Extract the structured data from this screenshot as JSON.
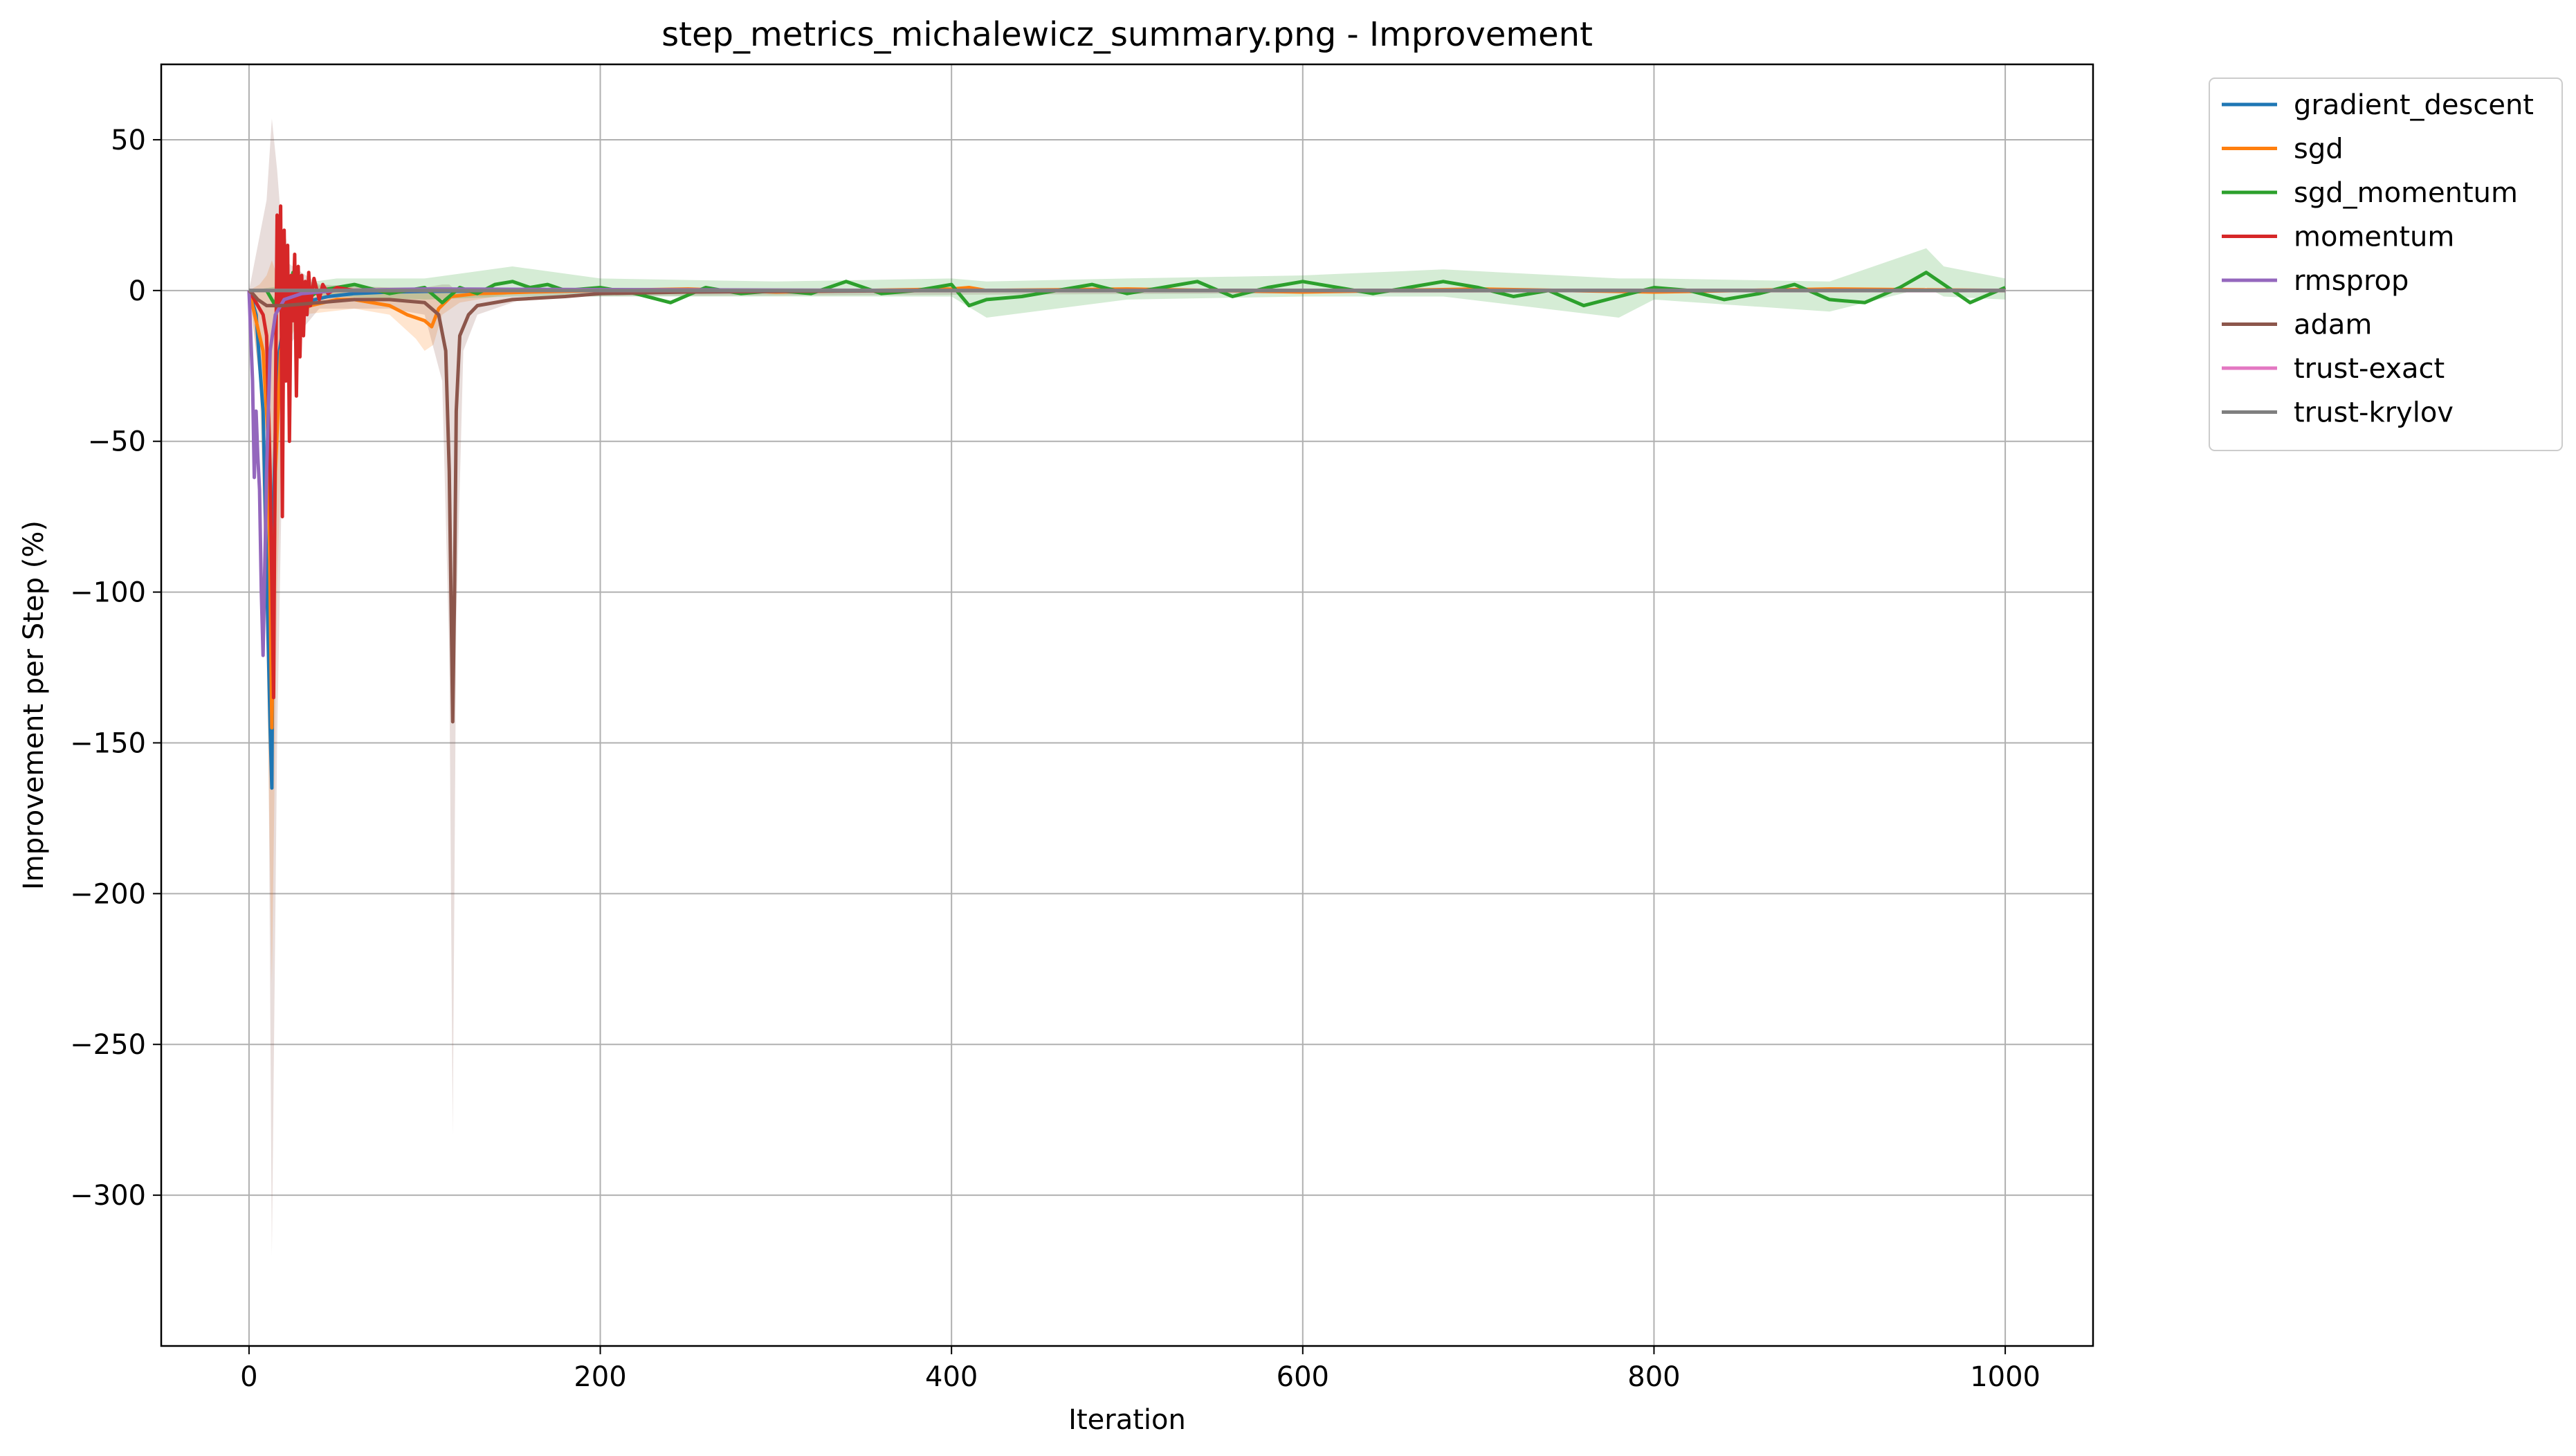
{
  "chart_data": {
    "type": "line",
    "title": "step_metrics_michalewicz_summary.png - Improvement",
    "xlabel": "Iteration",
    "ylabel": "Improvement per Step (%)",
    "xlim": [
      -50,
      1050
    ],
    "ylim": [
      -350,
      75
    ],
    "xticks": [
      0,
      200,
      400,
      600,
      800,
      1000
    ],
    "xtick_labels": [
      "0",
      "200",
      "400",
      "600",
      "800",
      "1000"
    ],
    "yticks": [
      50,
      0,
      -50,
      -100,
      -150,
      -200,
      -250,
      -300
    ],
    "ytick_labels": [
      "50",
      "0",
      "−50",
      "−100",
      "−150",
      "−200",
      "−250",
      "−300"
    ],
    "grid": true,
    "legend_position": "outside-right-top",
    "series": [
      {
        "name": "gradient_descent",
        "color": "#1f77b4",
        "x": [
          0,
          4,
          8,
          12,
          13,
          14,
          16,
          20,
          30,
          45,
          60,
          80,
          100,
          150,
          200,
          1000
        ],
        "y": [
          0,
          -8,
          -40,
          -145,
          -165,
          -70,
          -25,
          -10,
          -4,
          -2,
          -1,
          -0.5,
          -0.3,
          -0.1,
          0,
          0
        ]
      },
      {
        "name": "sgd",
        "color": "#ff7f0e",
        "x": [
          0,
          4,
          8,
          11,
          13,
          15,
          18,
          25,
          35,
          50,
          60,
          70,
          80,
          90,
          100,
          104,
          108,
          115,
          130,
          160,
          200,
          250,
          300,
          400,
          410,
          420,
          500,
          600,
          700,
          800,
          900,
          1000
        ],
        "y": [
          0,
          -10,
          -20,
          -50,
          -145,
          -60,
          -20,
          -8,
          -5,
          -3,
          -3,
          -4,
          -5,
          -8,
          -10,
          -12,
          -6,
          -2,
          -1,
          -0.5,
          0,
          0.5,
          -0.5,
          0.5,
          1,
          0,
          0.5,
          -0.5,
          0.5,
          -0.5,
          0.5,
          0
        ]
      },
      {
        "name": "sgd_momentum",
        "color": "#2ca02c",
        "x": [
          0,
          10,
          15,
          18,
          20,
          22,
          25,
          30,
          40,
          50,
          60,
          80,
          100,
          110,
          120,
          130,
          140,
          150,
          160,
          170,
          180,
          200,
          220,
          240,
          260,
          280,
          300,
          320,
          340,
          360,
          380,
          400,
          410,
          420,
          440,
          460,
          480,
          500,
          520,
          540,
          560,
          580,
          600,
          620,
          640,
          660,
          680,
          700,
          720,
          740,
          760,
          780,
          800,
          820,
          840,
          860,
          880,
          900,
          920,
          940,
          955,
          965,
          980,
          1000
        ],
        "y": [
          0,
          0,
          -5,
          10,
          17,
          -6,
          6,
          -4,
          0,
          1,
          2,
          -1,
          1,
          -4,
          1,
          -1,
          2,
          3,
          1,
          2,
          0,
          1,
          -1,
          -4,
          1,
          -1,
          0,
          -1,
          3,
          -1,
          0,
          2,
          -5,
          -3,
          -2,
          0,
          2,
          -1,
          1,
          3,
          -2,
          1,
          3,
          1,
          -1,
          1,
          3,
          1,
          -2,
          0,
          -5,
          -2,
          1,
          0,
          -3,
          -1,
          2,
          -3,
          -4,
          1,
          6,
          2,
          -4,
          1
        ]
      },
      {
        "name": "momentum",
        "color": "#d62728",
        "x": [
          0,
          5,
          8,
          10,
          12,
          14,
          15,
          16,
          17,
          18,
          19,
          20,
          21,
          22,
          23,
          24,
          25,
          26,
          27,
          28,
          29,
          30,
          31,
          32,
          33,
          34,
          35,
          37,
          40,
          42,
          45,
          50,
          60,
          80,
          100,
          200,
          1000
        ],
        "y": [
          0,
          -5,
          -8,
          -15,
          -60,
          -135,
          -40,
          25,
          -5,
          28,
          -75,
          20,
          -30,
          15,
          -50,
          5,
          -10,
          12,
          -35,
          8,
          -22,
          5,
          -15,
          3,
          -8,
          6,
          -5,
          4,
          -3,
          2,
          -1,
          1,
          0,
          0,
          0,
          0,
          0
        ]
      },
      {
        "name": "rmsprop",
        "color": "#9467bd",
        "x": [
          0,
          2,
          3,
          4,
          5,
          6,
          7,
          8,
          10,
          12,
          15,
          20,
          30,
          50,
          100,
          200,
          400,
          1000
        ],
        "y": [
          0,
          -30,
          -62,
          -40,
          -55,
          -66,
          -100,
          -121,
          -60,
          -20,
          -8,
          -3,
          -1,
          0,
          0.5,
          0.3,
          0,
          0
        ]
      },
      {
        "name": "adam",
        "color": "#8c564b",
        "x": [
          0,
          2,
          5,
          10,
          20,
          40,
          60,
          80,
          100,
          108,
          112,
          114,
          116,
          117,
          118,
          120,
          125,
          130,
          150,
          180,
          200,
          250,
          300,
          400,
          600,
          800,
          1000
        ],
        "y": [
          0,
          -1,
          -3,
          -5,
          -5,
          -4,
          -3,
          -3,
          -4,
          -8,
          -20,
          -60,
          -143,
          -100,
          -40,
          -15,
          -8,
          -5,
          -3,
          -2,
          -1,
          -0.5,
          -0.3,
          0,
          0,
          0,
          0
        ]
      },
      {
        "name": "trust-exact",
        "color": "#e377c2",
        "x": [
          0,
          1000
        ],
        "y": [
          0,
          0
        ]
      },
      {
        "name": "trust-krylov",
        "color": "#7f7f7f",
        "x": [
          0,
          1000
        ],
        "y": [
          0,
          0
        ]
      }
    ],
    "bands": [
      {
        "series": "sgd",
        "color": "#ff7f0e",
        "x": [
          0,
          6,
          10,
          13,
          16,
          20,
          30,
          60,
          80,
          95,
          100,
          105,
          110,
          120,
          150,
          200,
          1000
        ],
        "lower": [
          0,
          -30,
          -120,
          -230,
          -100,
          -20,
          -8,
          -6,
          -8,
          -16,
          -20,
          -18,
          -8,
          -4,
          -1,
          0,
          0
        ],
        "upper": [
          0,
          2,
          5,
          10,
          5,
          3,
          2,
          1,
          1,
          1,
          0,
          1,
          1,
          1,
          0.5,
          0,
          0
        ]
      },
      {
        "series": "adam",
        "color": "#8c564b",
        "x": [
          0,
          10,
          13,
          16,
          20,
          40,
          80,
          100,
          110,
          114,
          116,
          118,
          122,
          130,
          160,
          1000
        ],
        "lower": [
          0,
          -50,
          -320,
          -150,
          -20,
          -6,
          -6,
          -8,
          -30,
          -120,
          -280,
          -110,
          -20,
          -8,
          -2,
          0
        ],
        "upper": [
          0,
          30,
          57,
          40,
          10,
          2,
          1,
          1,
          2,
          2,
          1,
          1,
          1,
          1,
          0,
          0
        ]
      },
      {
        "series": "sgd_momentum",
        "color": "#2ca02c",
        "x": [
          0,
          50,
          100,
          150,
          200,
          300,
          400,
          420,
          500,
          600,
          680,
          780,
          800,
          900,
          955,
          965,
          1000
        ],
        "lower": [
          0,
          -2,
          -3,
          -2,
          -2,
          -2,
          -2,
          -9,
          -3,
          -2,
          -2,
          -9,
          -3,
          -7,
          1,
          -2,
          -3
        ],
        "upper": [
          0,
          4,
          4,
          8,
          4,
          3,
          4,
          3,
          4,
          5,
          7,
          4,
          4,
          3,
          14,
          8,
          4
        ]
      }
    ],
    "legend": [
      "gradient_descent",
      "sgd",
      "sgd_momentum",
      "momentum",
      "rmsprop",
      "adam",
      "trust-exact",
      "trust-krylov"
    ]
  }
}
